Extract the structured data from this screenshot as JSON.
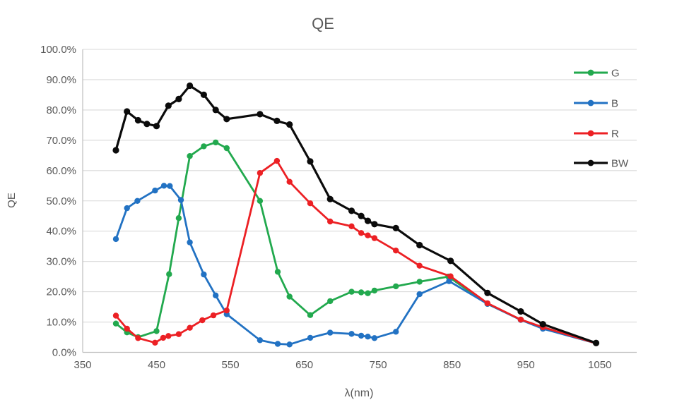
{
  "chart_data": {
    "type": "line",
    "title": "QE",
    "xlabel": "λ(nm)",
    "ylabel": "QE",
    "x_unit": "nm",
    "y_unit": "percent",
    "xlim": [
      350,
      1100
    ],
    "ylim": [
      0,
      100
    ],
    "x_ticks": [
      "350",
      "450",
      "550",
      "650",
      "750",
      "850",
      "950",
      "1050"
    ],
    "x_tick_values": [
      350,
      450,
      550,
      650,
      750,
      850,
      950,
      1050
    ],
    "y_tick_labels": [
      "0.0%",
      "10.0%",
      "20.0%",
      "30.0%",
      "40.0%",
      "50.0%",
      "60.0%",
      "70.0%",
      "80.0%",
      "90.0%",
      "100.0%"
    ],
    "y_tick_values": [
      0,
      10,
      20,
      30,
      40,
      50,
      60,
      70,
      80,
      90,
      100
    ],
    "grid": "horizontal",
    "legend_position": "right-top",
    "colors": {
      "gridline": "#d9d9d9",
      "axis_line": "#bfbfbf",
      "text": "#595959",
      "background": "#ffffff"
    },
    "series": [
      {
        "name": "G",
        "color": "#22a94e",
        "points": [
          [
            395,
            9.5
          ],
          [
            410,
            6.6
          ],
          [
            425,
            5.0
          ],
          [
            450,
            7.0
          ],
          [
            467,
            25.8
          ],
          [
            480,
            44.3
          ],
          [
            495,
            64.8
          ],
          [
            514,
            68.0
          ],
          [
            530,
            69.3
          ],
          [
            545,
            67.4
          ],
          [
            590,
            50.0
          ],
          [
            614,
            26.6
          ],
          [
            630,
            18.4
          ],
          [
            658,
            12.3
          ],
          [
            685,
            16.9
          ],
          [
            714,
            20.0
          ],
          [
            727,
            19.8
          ],
          [
            736,
            19.5
          ],
          [
            745,
            20.4
          ],
          [
            774,
            21.8
          ],
          [
            806,
            23.3
          ],
          [
            845,
            25.0
          ],
          [
            898,
            16.0
          ],
          [
            943,
            10.8
          ],
          [
            973,
            7.9
          ],
          [
            1045,
            3.0
          ]
        ]
      },
      {
        "name": "B",
        "color": "#2272c3",
        "points": [
          [
            395,
            37.4
          ],
          [
            410,
            47.6
          ],
          [
            424,
            50.0
          ],
          [
            448,
            53.4
          ],
          [
            460,
            55.0
          ],
          [
            468,
            54.9
          ],
          [
            483,
            50.3
          ],
          [
            495,
            36.3
          ],
          [
            514,
            25.7
          ],
          [
            530,
            18.8
          ],
          [
            545,
            12.6
          ],
          [
            590,
            4.0
          ],
          [
            614,
            2.8
          ],
          [
            630,
            2.6
          ],
          [
            658,
            4.8
          ],
          [
            685,
            6.5
          ],
          [
            714,
            6.1
          ],
          [
            727,
            5.5
          ],
          [
            736,
            5.2
          ],
          [
            745,
            4.7
          ],
          [
            774,
            6.8
          ],
          [
            806,
            19.2
          ],
          [
            846,
            23.5
          ],
          [
            898,
            16.0
          ],
          [
            943,
            10.7
          ],
          [
            973,
            7.8
          ],
          [
            1045,
            3.0
          ]
        ]
      },
      {
        "name": "R",
        "color": "#ec2024",
        "points": [
          [
            395,
            12.1
          ],
          [
            410,
            7.8
          ],
          [
            425,
            4.7
          ],
          [
            448,
            3.2
          ],
          [
            459,
            4.8
          ],
          [
            466,
            5.4
          ],
          [
            480,
            6.0
          ],
          [
            495,
            8.1
          ],
          [
            512,
            10.6
          ],
          [
            527,
            12.2
          ],
          [
            545,
            13.8
          ],
          [
            590,
            59.2
          ],
          [
            613,
            63.2
          ],
          [
            630,
            56.3
          ],
          [
            658,
            49.2
          ],
          [
            685,
            43.2
          ],
          [
            714,
            41.6
          ],
          [
            727,
            39.4
          ],
          [
            736,
            38.6
          ],
          [
            745,
            37.7
          ],
          [
            774,
            33.6
          ],
          [
            806,
            28.6
          ],
          [
            848,
            25.1
          ],
          [
            898,
            16.2
          ],
          [
            943,
            10.8
          ],
          [
            973,
            8.3
          ],
          [
            1045,
            3.0
          ]
        ]
      },
      {
        "name": "BW",
        "color": "#0b0b0b",
        "points": [
          [
            395,
            66.7
          ],
          [
            410,
            79.5
          ],
          [
            425,
            76.6
          ],
          [
            437,
            75.4
          ],
          [
            450,
            74.7
          ],
          [
            466,
            81.4
          ],
          [
            480,
            83.6
          ],
          [
            495,
            88.0
          ],
          [
            514,
            85.0
          ],
          [
            530,
            80.0
          ],
          [
            545,
            77.0
          ],
          [
            590,
            78.6
          ],
          [
            613,
            76.4
          ],
          [
            630,
            75.2
          ],
          [
            658,
            63.0
          ],
          [
            685,
            50.6
          ],
          [
            714,
            46.7
          ],
          [
            727,
            45.0
          ],
          [
            736,
            43.4
          ],
          [
            745,
            42.3
          ],
          [
            774,
            41.0
          ],
          [
            806,
            35.4
          ],
          [
            848,
            30.2
          ],
          [
            898,
            19.6
          ],
          [
            943,
            13.5
          ],
          [
            973,
            9.3
          ],
          [
            1045,
            3.1
          ]
        ]
      }
    ]
  }
}
